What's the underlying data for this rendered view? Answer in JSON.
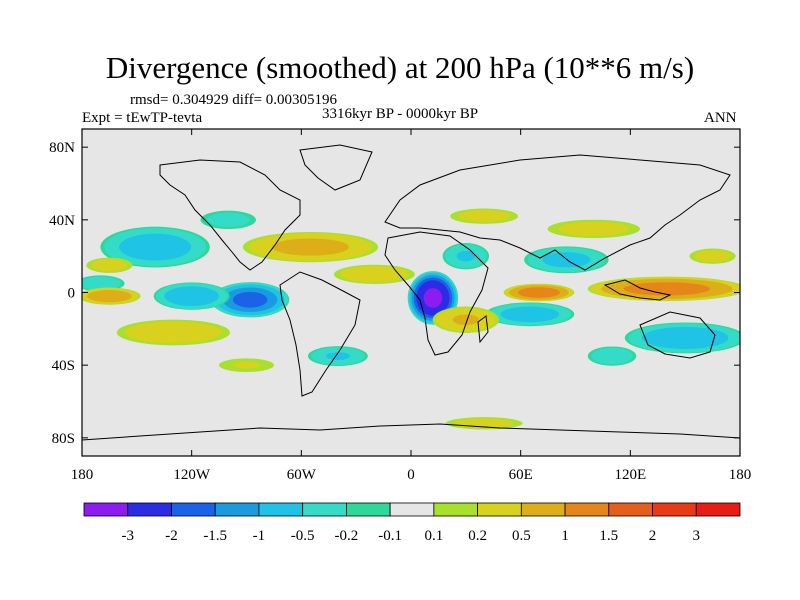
{
  "chart_data": {
    "type": "heatmap",
    "title": "Divergence (smoothed) at 200 hPa (10**6 m/s)",
    "stats_line": "rmsd= 0.304929 diff= 0.00305196",
    "left_label": "Expt = tEwTP-tevta",
    "center_label": "3316kyr BP - 0000kyr BP",
    "right_label": "ANN",
    "x_axis": {
      "range": [
        -180,
        180
      ],
      "ticks": [
        -180,
        -120,
        -60,
        0,
        60,
        120,
        180
      ],
      "tick_labels": [
        "180",
        "120W",
        "60W",
        "0",
        "60E",
        "120E",
        "180"
      ]
    },
    "y_axis": {
      "range": [
        -90,
        90
      ],
      "ticks": [
        80,
        40,
        0,
        -40,
        -80
      ],
      "tick_labels": [
        "80N",
        "40N",
        "0",
        "40S",
        "80S"
      ]
    },
    "colorbar": {
      "levels": [
        "-3",
        "-2",
        "-1.5",
        "-1",
        "-0.5",
        "-0.2",
        "-0.1",
        "0.1",
        "0.2",
        "0.5",
        "1",
        "1.5",
        "2",
        "3"
      ],
      "colors": [
        "#8c1cf0",
        "#2c2ce6",
        "#1a62e8",
        "#1a9be0",
        "#1ec3e6",
        "#34dcc8",
        "#2ed89a",
        "#e6e6e6",
        "#a8e02c",
        "#d8d21e",
        "#dcae18",
        "#e6861a",
        "#e4601a",
        "#e83a14",
        "#e81c14"
      ]
    },
    "field_blobs": [
      {
        "lon": 12,
        "lat": -3,
        "rx": 14,
        "ry": 15,
        "value": -3.0
      },
      {
        "lon": -88,
        "lat": -4,
        "rx": 22,
        "ry": 10,
        "value": -1.6
      },
      {
        "lon": -120,
        "lat": -2,
        "rx": 22,
        "ry": 8,
        "value": -0.8
      },
      {
        "lon": -140,
        "lat": 25,
        "rx": 32,
        "ry": 12,
        "value": -0.7
      },
      {
        "lon": 150,
        "lat": -25,
        "rx": 35,
        "ry": 9,
        "value": -0.8
      },
      {
        "lon": 65,
        "lat": -12,
        "rx": 26,
        "ry": 7,
        "value": -0.7
      },
      {
        "lon": 85,
        "lat": 18,
        "rx": 25,
        "ry": 8,
        "value": -0.6
      },
      {
        "lon": 30,
        "lat": 20,
        "rx": 14,
        "ry": 8,
        "value": -0.5
      },
      {
        "lon": -40,
        "lat": -35,
        "rx": 18,
        "ry": 6,
        "value": -0.5
      },
      {
        "lon": -170,
        "lat": 5,
        "rx": 15,
        "ry": 5,
        "value": -0.4
      },
      {
        "lon": 110,
        "lat": -35,
        "rx": 15,
        "ry": 6,
        "value": -0.4
      },
      {
        "lon": -100,
        "lat": 40,
        "rx": 18,
        "ry": 6,
        "value": -0.3
      },
      {
        "lon": 140,
        "lat": 2,
        "rx": 45,
        "ry": 7,
        "value": 1.2
      },
      {
        "lon": 70,
        "lat": 0,
        "rx": 20,
        "ry": 5,
        "value": 1.3
      },
      {
        "lon": -165,
        "lat": -2,
        "rx": 18,
        "ry": 5,
        "value": 0.8
      },
      {
        "lon": -55,
        "lat": 25,
        "rx": 40,
        "ry": 9,
        "value": 0.6
      },
      {
        "lon": -130,
        "lat": -22,
        "rx": 35,
        "ry": 8,
        "value": 0.4
      },
      {
        "lon": 30,
        "lat": -15,
        "rx": 20,
        "ry": 8,
        "value": 0.5
      },
      {
        "lon": -20,
        "lat": 10,
        "rx": 25,
        "ry": 6,
        "value": 0.4
      },
      {
        "lon": 100,
        "lat": 35,
        "rx": 30,
        "ry": 6,
        "value": 0.3
      },
      {
        "lon": 40,
        "lat": 42,
        "rx": 22,
        "ry": 5,
        "value": 0.3
      },
      {
        "lon": -90,
        "lat": -40,
        "rx": 20,
        "ry": 5,
        "value": 0.2
      },
      {
        "lon": 40,
        "lat": -72,
        "rx": 25,
        "ry": 4,
        "value": 0.3
      },
      {
        "lon": -165,
        "lat": 15,
        "rx": 15,
        "ry": 5,
        "value": 0.3
      },
      {
        "lon": 165,
        "lat": 20,
        "rx": 15,
        "ry": 5,
        "value": 0.3
      }
    ]
  }
}
